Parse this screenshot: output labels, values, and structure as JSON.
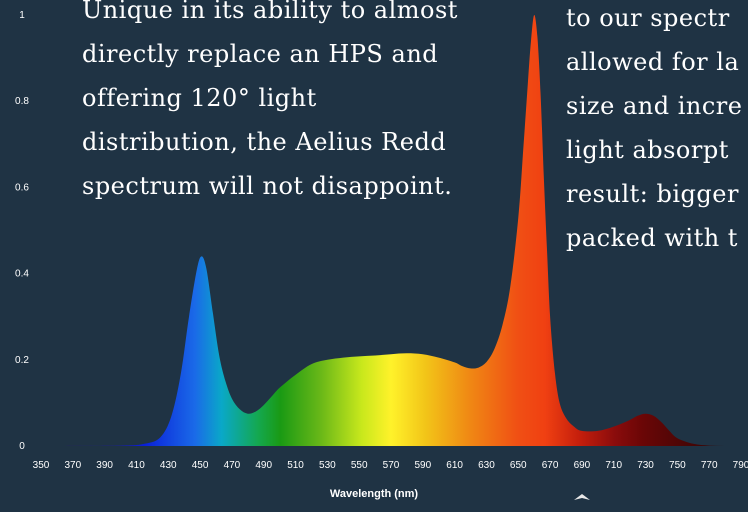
{
  "colors": {
    "background": "#1f3344",
    "text": "#ffffff",
    "axis_text": "#ffffff"
  },
  "left_text": {
    "lines": [
      "Unique in its ability to almost",
      "directly replace an HPS and",
      "offering 120° light",
      "distribution, the Aelius Redd",
      "spectrum will not disappoint."
    ]
  },
  "right_text": {
    "lines": [
      "to our spectr",
      "allowed for la",
      "size and incre",
      "light absorpt",
      "result: bigger",
      "packed with t"
    ]
  },
  "chart_data": {
    "type": "area",
    "title": "",
    "xlabel": "Wavelength (nm)",
    "ylabel": "",
    "xlim": [
      350,
      790
    ],
    "ylim": [
      0,
      1
    ],
    "grid": false,
    "legend": "none",
    "x_ticks": [
      350,
      370,
      390,
      410,
      430,
      450,
      470,
      490,
      510,
      530,
      550,
      570,
      590,
      610,
      630,
      650,
      670,
      690,
      710,
      730,
      750,
      770,
      790
    ],
    "y_ticks": [
      0,
      0.2,
      0.4,
      0.6,
      0.8,
      1
    ],
    "series": [
      {
        "x": [
          350,
          400,
          415,
          425,
          432,
          438,
          443,
          448,
          451,
          454,
          458,
          462,
          466,
          470,
          475,
          480,
          485,
          490,
          495,
          500,
          510,
          520,
          530,
          540,
          550,
          560,
          570,
          580,
          590,
          600,
          610,
          615,
          620,
          625,
          630,
          635,
          640,
          645,
          650,
          653,
          656,
          658,
          660,
          662,
          664,
          666,
          668,
          670,
          673,
          676,
          680,
          685,
          690,
          700,
          710,
          720,
          725,
          730,
          735,
          740,
          745,
          750,
          760,
          770,
          780,
          790
        ],
        "values": [
          0,
          0.001,
          0.005,
          0.02,
          0.07,
          0.17,
          0.3,
          0.41,
          0.44,
          0.41,
          0.31,
          0.21,
          0.15,
          0.11,
          0.085,
          0.075,
          0.08,
          0.095,
          0.115,
          0.135,
          0.165,
          0.19,
          0.2,
          0.205,
          0.208,
          0.21,
          0.213,
          0.215,
          0.213,
          0.205,
          0.194,
          0.185,
          0.18,
          0.182,
          0.195,
          0.225,
          0.28,
          0.37,
          0.53,
          0.68,
          0.84,
          0.94,
          1.0,
          0.95,
          0.82,
          0.63,
          0.46,
          0.3,
          0.17,
          0.1,
          0.065,
          0.045,
          0.035,
          0.035,
          0.045,
          0.06,
          0.07,
          0.075,
          0.07,
          0.055,
          0.035,
          0.018,
          0.005,
          0.001,
          0,
          0
        ]
      }
    ]
  }
}
